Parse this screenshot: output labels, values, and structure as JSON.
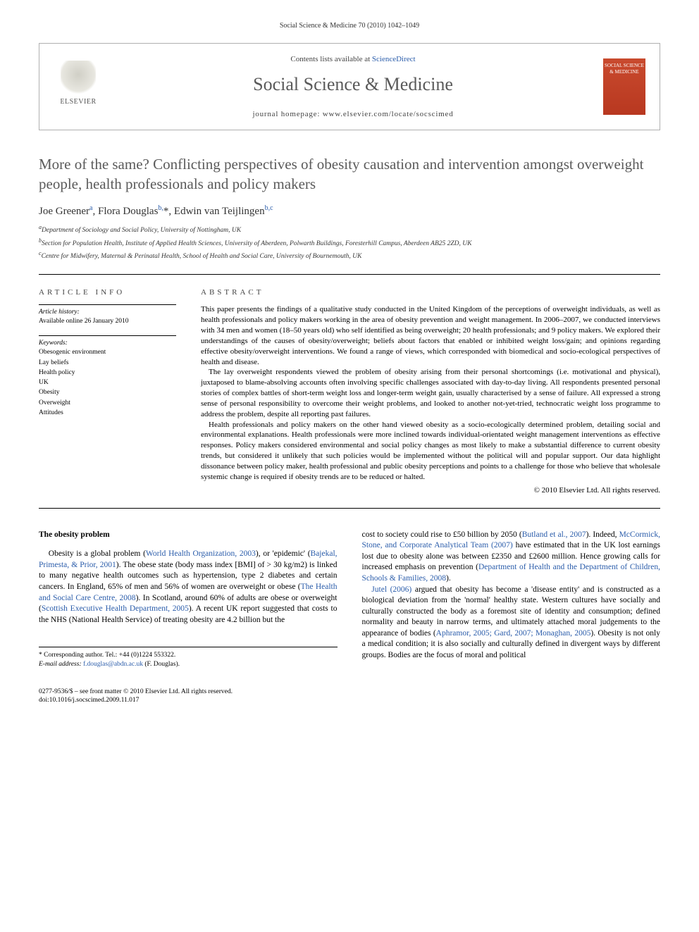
{
  "running_head": "Social Science & Medicine 70 (2010) 1042–1049",
  "header": {
    "publisher_name": "ELSEVIER",
    "contents_prefix": "Contents lists available at ",
    "contents_link": "ScienceDirect",
    "journal_name": "Social Science & Medicine",
    "homepage_prefix": "journal homepage: ",
    "homepage_url": "www.elsevier.com/locate/socscimed",
    "cover_text": "SOCIAL SCIENCE & MEDICINE"
  },
  "article": {
    "title": "More of the same? Conflicting perspectives of obesity causation and intervention amongst overweight people, health professionals and policy makers",
    "authors_html": "Joe Greener<sup>a</sup>, Flora Douglas<sup>b,</sup>*, Edwin van Teijlingen<sup>b,c</sup>",
    "affiliations": [
      "<sup>a</sup>Department of Sociology and Social Policy, University of Nottingham, UK",
      "<sup>b</sup>Section for Population Health, Institute of Applied Health Sciences, University of Aberdeen, Polwarth Buildings, Foresterhill Campus, Aberdeen AB25 2ZD, UK",
      "<sup>c</sup>Centre for Midwifery, Maternal & Perinatal Health, School of Health and Social Care, University of Bournemouth, UK"
    ]
  },
  "meta": {
    "article_info_head": "ARTICLE INFO",
    "history_label": "Article history:",
    "history_date": "Available online 26 January 2010",
    "keywords_label": "Keywords:",
    "keywords": [
      "Obesogenic environment",
      "Lay beliefs",
      "Health policy",
      "UK",
      "Obesity",
      "Overweight",
      "Attitudes"
    ]
  },
  "abstract": {
    "head": "ABSTRACT",
    "paras": [
      "This paper presents the findings of a qualitative study conducted in the United Kingdom of the perceptions of overweight individuals, as well as health professionals and policy makers working in the area of obesity prevention and weight management. In 2006–2007, we conducted interviews with 34 men and women (18–50 years old) who self identified as being overweight; 20 health professionals; and 9 policy makers. We explored their understandings of the causes of obesity/overweight; beliefs about factors that enabled or inhibited weight loss/gain; and opinions regarding effective obesity/overweight interventions. We found a range of views, which corresponded with biomedical and socio-ecological perspectives of health and disease.",
      "The lay overweight respondents viewed the problem of obesity arising from their personal shortcomings (i.e. motivational and physical), juxtaposed to blame-absolving accounts often involving specific challenges associated with day-to-day living. All respondents presented personal stories of complex battles of short-term weight loss and longer-term weight gain, usually characterised by a sense of failure. All expressed a strong sense of personal responsibility to overcome their weight problems, and looked to another not-yet-tried, technocratic weight loss programme to address the problem, despite all reporting past failures.",
      "Health professionals and policy makers on the other hand viewed obesity as a socio-ecologically determined problem, detailing social and environmental explanations. Health professionals were more inclined towards individual-orientated weight management interventions as effective responses. Policy makers considered environmental and social policy changes as most likely to make a substantial difference to current obesity trends, but considered it unlikely that such policies would be implemented without the political will and popular support. Our data highlight dissonance between policy maker, health professional and public obesity perceptions and points to a challenge for those who believe that wholesale systemic change is required if obesity trends are to be reduced or halted."
    ],
    "copyright": "© 2010 Elsevier Ltd. All rights reserved."
  },
  "body": {
    "section_head": "The obesity problem",
    "left_col": "Obesity is a global problem (<a>World Health Organization, 2003</a>), or 'epidemic' (<a>Bajekal, Primesta, & Prior, 2001</a>). The obese state (body mass index [BMI] of > 30 kg/m2) is linked to many negative health outcomes such as hypertension, type 2 diabetes and certain cancers. In England, 65% of men and 56% of women are overweight or obese (<a>The Health and Social Care Centre, 2008</a>). In Scotland, around 60% of adults are obese or overweight (<a>Scottish Executive Health Department, 2005</a>). A recent UK report suggested that costs to the NHS (National Health Service) of treating obesity are 4.2 billion but the",
    "right_col_p1": "cost to society could rise to £50 billion by 2050 (<a>Butland et al., 2007</a>). Indeed, <a>McCormick, Stone, and Corporate Analytical Team (2007)</a> have estimated that in the UK lost earnings lost due to obesity alone was between £2350 and £2600 million. Hence growing calls for increased emphasis on prevention (<a>Department of Health and the Department of Children, Schools & Families, 2008</a>).",
    "right_col_p2": "<a>Jutel (2006)</a> argued that obesity has become a 'disease entity' and is constructed as a biological deviation from the 'normal' healthy state. Western cultures have socially and culturally constructed the body as a foremost site of identity and consumption; defined normality and beauty in narrow terms, and ultimately attached moral judgements to the appearance of bodies (<a>Aphramor, 2005; Gard, 2007; Monaghan, 2005</a>). Obesity is not only a medical condition; it is also socially and culturally defined in divergent ways by different groups. Bodies are the focus of moral and political"
  },
  "corresponding": {
    "label": "* Corresponding author. Tel.: +44 (0)1224 553322.",
    "email_label": "E-mail address:",
    "email": "f.douglas@abdn.ac.uk",
    "email_name": "(F. Douglas)."
  },
  "footer": {
    "issn": "0277-9536/$ – see front matter © 2010 Elsevier Ltd. All rights reserved.",
    "doi": "doi:10.1016/j.socscimed.2009.11.017"
  }
}
